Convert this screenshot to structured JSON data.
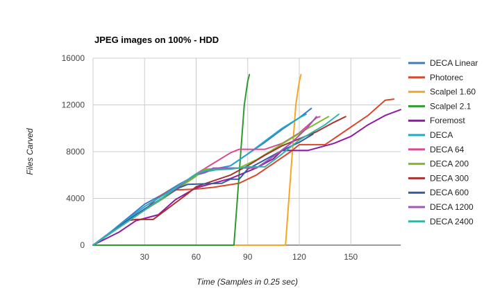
{
  "chart_data": {
    "type": "line",
    "title": "JPEG images on 100% - HDD",
    "xlabel": "Time (Samples in 0.25 sec)",
    "ylabel": "Files Carved",
    "xlim": [
      0,
      179
    ],
    "ylim": [
      0,
      16000
    ],
    "x_ticks": [
      30,
      60,
      90,
      120,
      150
    ],
    "y_ticks": [
      0,
      4000,
      8000,
      12000,
      16000
    ],
    "x_tick_labels": [
      "30",
      "60",
      "90",
      "120",
      "150"
    ],
    "y_tick_labels": [
      "0",
      "4000",
      "8000",
      "12000",
      "16000"
    ],
    "grid": true,
    "legend_position": "right",
    "series": [
      {
        "name": "DECA Linear",
        "color": "#3d79c6",
        "points": [
          [
            0,
            0
          ],
          [
            10,
            1100
          ],
          [
            20,
            2300
          ],
          [
            30,
            3500
          ],
          [
            40,
            4300
          ],
          [
            50,
            5200
          ],
          [
            60,
            6000
          ],
          [
            65,
            6200
          ],
          [
            70,
            6500
          ],
          [
            80,
            6800
          ],
          [
            90,
            7800
          ],
          [
            100,
            8800
          ],
          [
            110,
            9900
          ],
          [
            120,
            10900
          ],
          [
            127,
            11700
          ]
        ]
      },
      {
        "name": "Photorec",
        "color": "#d9472b",
        "points": [
          [
            0,
            0
          ],
          [
            10,
            1000
          ],
          [
            20,
            2100
          ],
          [
            30,
            3000
          ],
          [
            38,
            4100
          ],
          [
            45,
            4700
          ],
          [
            60,
            4800
          ],
          [
            70,
            4950
          ],
          [
            85,
            5300
          ],
          [
            95,
            6000
          ],
          [
            105,
            7000
          ],
          [
            115,
            8000
          ],
          [
            120,
            8600
          ],
          [
            135,
            8600
          ],
          [
            145,
            9600
          ],
          [
            160,
            11100
          ],
          [
            170,
            12400
          ],
          [
            175,
            12500
          ]
        ]
      },
      {
        "name": "Scalpel 1.60",
        "color": "#f5a623",
        "points": [
          [
            0,
            0
          ],
          [
            112,
            0
          ],
          [
            114,
            4000
          ],
          [
            116,
            8000
          ],
          [
            118,
            12000
          ],
          [
            120,
            14000
          ],
          [
            121,
            14600
          ]
        ]
      },
      {
        "name": "Scalpel 2.1",
        "color": "#2e9a2e",
        "points": [
          [
            0,
            0
          ],
          [
            82,
            0
          ],
          [
            84,
            4000
          ],
          [
            86,
            8000
          ],
          [
            88,
            12000
          ],
          [
            90,
            14000
          ],
          [
            91,
            14600
          ]
        ]
      },
      {
        "name": "Foremost",
        "color": "#8e1b9f",
        "points": [
          [
            0,
            0
          ],
          [
            15,
            1100
          ],
          [
            25,
            2100
          ],
          [
            38,
            2600
          ],
          [
            48,
            3900
          ],
          [
            60,
            4900
          ],
          [
            80,
            5700
          ],
          [
            95,
            6600
          ],
          [
            105,
            7400
          ],
          [
            110,
            8100
          ],
          [
            125,
            8100
          ],
          [
            140,
            8700
          ],
          [
            150,
            9300
          ],
          [
            160,
            10300
          ],
          [
            170,
            11100
          ],
          [
            179,
            11600
          ]
        ]
      },
      {
        "name": "DECA",
        "color": "#1fa8cf",
        "points": [
          [
            0,
            0
          ],
          [
            10,
            1100
          ],
          [
            20,
            2200
          ],
          [
            30,
            3300
          ],
          [
            40,
            4200
          ],
          [
            50,
            5100
          ],
          [
            60,
            6000
          ],
          [
            62,
            6200
          ],
          [
            70,
            6400
          ],
          [
            80,
            6800
          ],
          [
            90,
            7800
          ],
          [
            100,
            8900
          ],
          [
            110,
            10000
          ],
          [
            120,
            10900
          ],
          [
            124,
            11200
          ]
        ]
      },
      {
        "name": "DECA 64",
        "color": "#d94a91",
        "points": [
          [
            0,
            0
          ],
          [
            10,
            1000
          ],
          [
            20,
            2000
          ],
          [
            30,
            3000
          ],
          [
            40,
            4000
          ],
          [
            50,
            5100
          ],
          [
            60,
            6100
          ],
          [
            70,
            7000
          ],
          [
            80,
            7900
          ],
          [
            85,
            8200
          ],
          [
            100,
            8200
          ],
          [
            110,
            8700
          ],
          [
            120,
            9600
          ],
          [
            130,
            10900
          ],
          [
            132,
            11000
          ]
        ]
      },
      {
        "name": "DECA 200",
        "color": "#7cba27",
        "points": [
          [
            0,
            0
          ],
          [
            10,
            1000
          ],
          [
            20,
            2000
          ],
          [
            30,
            3000
          ],
          [
            40,
            3900
          ],
          [
            50,
            4900
          ],
          [
            60,
            5900
          ],
          [
            65,
            6500
          ],
          [
            85,
            6600
          ],
          [
            95,
            7300
          ],
          [
            105,
            8200
          ],
          [
            115,
            9100
          ],
          [
            125,
            10000
          ],
          [
            137,
            11000
          ]
        ]
      },
      {
        "name": "DECA 300",
        "color": "#a8312f",
        "points": [
          [
            0,
            0
          ],
          [
            10,
            1000
          ],
          [
            20,
            2100
          ],
          [
            25,
            2200
          ],
          [
            35,
            2200
          ],
          [
            45,
            3300
          ],
          [
            55,
            4400
          ],
          [
            60,
            5000
          ],
          [
            70,
            5500
          ],
          [
            80,
            6000
          ],
          [
            90,
            6800
          ],
          [
            100,
            7700
          ],
          [
            110,
            8500
          ],
          [
            120,
            9100
          ],
          [
            130,
            9700
          ],
          [
            140,
            10500
          ],
          [
            147,
            11000
          ]
        ]
      },
      {
        "name": "DECA 600",
        "color": "#325a9c",
        "points": [
          [
            0,
            0
          ],
          [
            10,
            1000
          ],
          [
            20,
            2100
          ],
          [
            30,
            3100
          ],
          [
            40,
            4000
          ],
          [
            50,
            4900
          ],
          [
            55,
            5200
          ],
          [
            75,
            5300
          ],
          [
            80,
            5650
          ],
          [
            85,
            5650
          ],
          [
            90,
            6500
          ],
          [
            100,
            7300
          ],
          [
            110,
            8100
          ],
          [
            120,
            8800
          ],
          [
            128,
            9500
          ]
        ]
      },
      {
        "name": "DECA 1200",
        "color": "#a155b9",
        "points": [
          [
            0,
            0
          ],
          [
            10,
            1000
          ],
          [
            20,
            2000
          ],
          [
            30,
            3000
          ],
          [
            40,
            4000
          ],
          [
            50,
            5000
          ],
          [
            60,
            6100
          ],
          [
            65,
            6200
          ],
          [
            70,
            6600
          ],
          [
            95,
            6600
          ],
          [
            105,
            7600
          ],
          [
            115,
            8700
          ],
          [
            125,
            10100
          ],
          [
            130,
            11000
          ]
        ]
      },
      {
        "name": "DECA 2400",
        "color": "#2fb5a7",
        "points": [
          [
            0,
            0
          ],
          [
            10,
            1000
          ],
          [
            20,
            2000
          ],
          [
            30,
            3000
          ],
          [
            40,
            4000
          ],
          [
            50,
            5100
          ],
          [
            60,
            6100
          ],
          [
            65,
            6400
          ],
          [
            80,
            6500
          ],
          [
            90,
            6700
          ],
          [
            100,
            6700
          ],
          [
            110,
            7800
          ],
          [
            120,
            9000
          ],
          [
            135,
            10300
          ],
          [
            143,
            11200
          ]
        ]
      }
    ]
  }
}
